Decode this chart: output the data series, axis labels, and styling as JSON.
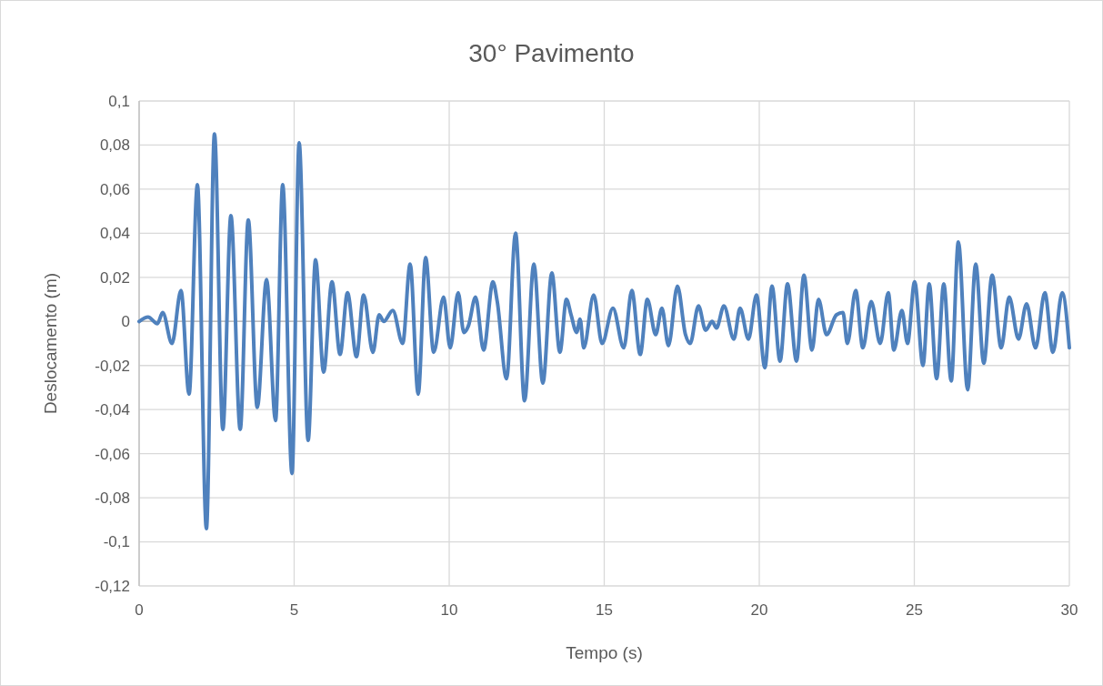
{
  "chart_data": {
    "type": "line",
    "title": "30° Pavimento",
    "xlabel": "Tempo (s)",
    "ylabel": "Deslocamento (m)",
    "xlim": [
      0,
      30
    ],
    "xticks": [
      0,
      5,
      10,
      15,
      20,
      25,
      30
    ],
    "ylim": [
      -0.12,
      0.1
    ],
    "yticks": [
      {
        "value": -0.12,
        "label": "-0,12"
      },
      {
        "value": -0.1,
        "label": "-0,1"
      },
      {
        "value": -0.08,
        "label": "-0,08"
      },
      {
        "value": -0.06,
        "label": "-0,06"
      },
      {
        "value": -0.04,
        "label": "-0,04"
      },
      {
        "value": -0.02,
        "label": "-0,02"
      },
      0,
      {
        "value": 0.02,
        "label": "0,02"
      },
      {
        "value": 0.04,
        "label": "0,04"
      },
      {
        "value": 0.06,
        "label": "0,06"
      },
      {
        "value": 0.08,
        "label": "0,08"
      },
      {
        "value": 0.1,
        "label": "0,1"
      }
    ],
    "grid": true,
    "marker": "none",
    "line_style": "solid",
    "series": [
      {
        "color": "#4f81bd",
        "x": [
          0,
          0.29,
          0.59,
          0.76,
          1.06,
          1.35,
          1.61,
          1.88,
          2.17,
          2.43,
          2.7,
          2.96,
          3.26,
          3.52,
          3.81,
          4.11,
          4.4,
          4.63,
          4.93,
          5.16,
          5.45,
          5.69,
          5.95,
          6.22,
          6.48,
          6.72,
          7.01,
          7.24,
          7.54,
          7.74,
          7.89,
          8.18,
          8.5,
          8.74,
          9,
          9.24,
          9.5,
          9.82,
          10.03,
          10.29,
          10.47,
          10.62,
          10.85,
          11.11,
          11.41,
          11.55,
          11.85,
          12.14,
          12.43,
          12.73,
          13.02,
          13.31,
          13.57,
          13.78,
          13.93,
          14.11,
          14.22,
          14.34,
          14.66,
          14.93,
          15.28,
          15.63,
          15.89,
          16.16,
          16.39,
          16.66,
          16.86,
          17.07,
          17.36,
          17.62,
          17.77,
          18.04,
          18.27,
          18.48,
          18.62,
          18.86,
          19.18,
          19.38,
          19.65,
          19.91,
          20.18,
          20.41,
          20.67,
          20.91,
          21.2,
          21.44,
          21.7,
          21.91,
          22.17,
          22.49,
          22.7,
          22.84,
          23.11,
          23.34,
          23.61,
          23.9,
          24.16,
          24.34,
          24.6,
          24.78,
          25.01,
          25.28,
          25.48,
          25.72,
          25.95,
          26.19,
          26.42,
          26.72,
          26.98,
          27.24,
          27.51,
          27.8,
          28.06,
          28.36,
          28.62,
          28.91,
          29.21,
          29.47,
          29.77,
          30
        ],
        "values": [
          0,
          0.002,
          -0.001,
          0.004,
          -0.01,
          0.014,
          -0.033,
          0.062,
          -0.094,
          0.085,
          -0.049,
          0.048,
          -0.049,
          0.046,
          -0.039,
          0.019,
          -0.045,
          0.062,
          -0.069,
          0.081,
          -0.054,
          0.028,
          -0.023,
          0.018,
          -0.015,
          0.013,
          -0.016,
          0.012,
          -0.014,
          0.003,
          0,
          0.005,
          -0.01,
          0.026,
          -0.033,
          0.029,
          -0.014,
          0.011,
          -0.012,
          0.013,
          -0.005,
          -0.002,
          0.011,
          -0.013,
          0.018,
          0.009,
          -0.026,
          0.04,
          -0.036,
          0.026,
          -0.028,
          0.022,
          -0.014,
          0.01,
          0.003,
          -0.005,
          0.001,
          -0.012,
          0.012,
          -0.01,
          0.006,
          -0.012,
          0.014,
          -0.015,
          0.01,
          -0.006,
          0.006,
          -0.011,
          0.016,
          -0.006,
          -0.01,
          0.007,
          -0.004,
          0,
          -0.003,
          0.007,
          -0.008,
          0.006,
          -0.008,
          0.012,
          -0.021,
          0.016,
          -0.018,
          0.017,
          -0.018,
          0.021,
          -0.013,
          0.01,
          -0.006,
          0.003,
          0.004,
          -0.01,
          0.014,
          -0.012,
          0.009,
          -0.01,
          0.013,
          -0.013,
          0.005,
          -0.01,
          0.018,
          -0.02,
          0.017,
          -0.026,
          0.017,
          -0.027,
          0.036,
          -0.031,
          0.026,
          -0.019,
          0.021,
          -0.012,
          0.011,
          -0.008,
          0.008,
          -0.012,
          0.013,
          -0.014,
          0.013,
          -0.012
        ]
      }
    ]
  }
}
